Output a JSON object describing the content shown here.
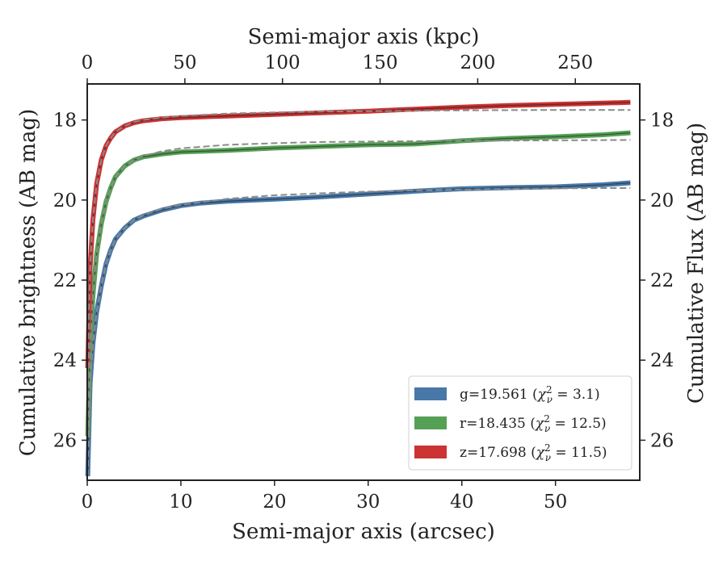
{
  "chart_data": {
    "type": "line",
    "xlabel": "Semi-major axis (arcsec)",
    "x2label": "Semi-major axis (kpc)",
    "ylabel": "Cumulative brightness (AB mag)",
    "y2label": "Cumulative Flux (AB mag)",
    "xlim": [
      0,
      59
    ],
    "x2lim": [
      0,
      283
    ],
    "ylim": [
      27,
      17.1
    ],
    "y_inverted": true,
    "xticks": [
      0,
      10,
      20,
      30,
      40,
      50
    ],
    "x2ticks": [
      0,
      50,
      100,
      150,
      200,
      250
    ],
    "yticks": [
      18,
      20,
      22,
      24,
      26
    ],
    "grid": false,
    "legend_position": "bottom-right",
    "series": [
      {
        "name": "g=19.561 (χ²ν = 3.1)",
        "label_main": "g=19.561 (",
        "label_chi": "3.1",
        "color": "#4878a8",
        "points": [
          [
            0.05,
            26.9
          ],
          [
            0.3,
            24.6
          ],
          [
            0.6,
            23.6
          ],
          [
            1,
            22.8
          ],
          [
            1.5,
            22.15
          ],
          [
            2,
            21.6
          ],
          [
            2.5,
            21.25
          ],
          [
            3,
            20.98
          ],
          [
            4,
            20.7
          ],
          [
            5,
            20.5
          ],
          [
            6,
            20.4
          ],
          [
            8,
            20.25
          ],
          [
            10,
            20.14
          ],
          [
            12,
            20.08
          ],
          [
            15,
            20.03
          ],
          [
            18,
            20.0
          ],
          [
            20,
            19.98
          ],
          [
            25,
            19.92
          ],
          [
            30,
            19.85
          ],
          [
            35,
            19.78
          ],
          [
            40,
            19.72
          ],
          [
            45,
            19.69
          ],
          [
            50,
            19.67
          ],
          [
            55,
            19.62
          ],
          [
            58,
            19.57
          ]
        ]
      },
      {
        "name": "r=18.435 (χ²ν = 12.5)",
        "label_main": "r=18.435 (",
        "label_chi": "12.5",
        "color": "#56a055",
        "points": [
          [
            0.05,
            25.9
          ],
          [
            0.3,
            23.6
          ],
          [
            0.6,
            22.4
          ],
          [
            1,
            21.35
          ],
          [
            1.5,
            20.6
          ],
          [
            2,
            20.05
          ],
          [
            2.5,
            19.7
          ],
          [
            3,
            19.42
          ],
          [
            4,
            19.15
          ],
          [
            5,
            19.0
          ],
          [
            6,
            18.92
          ],
          [
            8,
            18.85
          ],
          [
            10,
            18.8
          ],
          [
            15,
            18.76
          ],
          [
            20,
            18.7
          ],
          [
            25,
            18.66
          ],
          [
            30,
            18.62
          ],
          [
            35,
            18.6
          ],
          [
            40,
            18.52
          ],
          [
            45,
            18.46
          ],
          [
            50,
            18.42
          ],
          [
            55,
            18.37
          ],
          [
            58,
            18.32
          ]
        ]
      },
      {
        "name": "z=17.698 (χ²ν = 11.5)",
        "label_main": "z=17.698 (",
        "label_chi": "11.5",
        "color": "#cc3333",
        "points": [
          [
            0.05,
            24.2
          ],
          [
            0.3,
            21.7
          ],
          [
            0.6,
            20.5
          ],
          [
            1,
            19.6
          ],
          [
            1.5,
            19.0
          ],
          [
            2,
            18.65
          ],
          [
            2.5,
            18.45
          ],
          [
            3,
            18.3
          ],
          [
            4,
            18.15
          ],
          [
            5,
            18.07
          ],
          [
            6,
            18.02
          ],
          [
            8,
            17.97
          ],
          [
            10,
            17.94
          ],
          [
            15,
            17.9
          ],
          [
            20,
            17.86
          ],
          [
            25,
            17.82
          ],
          [
            30,
            17.78
          ],
          [
            35,
            17.73
          ],
          [
            40,
            17.68
          ],
          [
            45,
            17.64
          ],
          [
            50,
            17.61
          ],
          [
            55,
            17.58
          ],
          [
            58,
            17.56
          ]
        ]
      }
    ],
    "fits": [
      {
        "points": [
          [
            0.05,
            26.9
          ],
          [
            0.3,
            24.6
          ],
          [
            0.6,
            23.6
          ],
          [
            1,
            22.8
          ],
          [
            1.5,
            22.15
          ],
          [
            2,
            21.6
          ],
          [
            2.5,
            21.25
          ],
          [
            3,
            20.98
          ],
          [
            4,
            20.7
          ],
          [
            5,
            20.5
          ],
          [
            6,
            20.38
          ],
          [
            8,
            20.22
          ],
          [
            10,
            20.12
          ],
          [
            15,
            19.97
          ],
          [
            20,
            19.88
          ],
          [
            25,
            19.83
          ],
          [
            30,
            19.79
          ],
          [
            35,
            19.76
          ],
          [
            40,
            19.74
          ],
          [
            45,
            19.72
          ],
          [
            50,
            19.71
          ],
          [
            58,
            19.7
          ]
        ]
      },
      {
        "points": [
          [
            0.05,
            25.9
          ],
          [
            0.3,
            23.6
          ],
          [
            0.6,
            22.4
          ],
          [
            1,
            21.35
          ],
          [
            1.5,
            20.6
          ],
          [
            2,
            20.05
          ],
          [
            2.5,
            19.7
          ],
          [
            3,
            19.42
          ],
          [
            4,
            19.15
          ],
          [
            5,
            19.0
          ],
          [
            6,
            18.9
          ],
          [
            8,
            18.78
          ],
          [
            10,
            18.71
          ],
          [
            15,
            18.62
          ],
          [
            20,
            18.58
          ],
          [
            25,
            18.55
          ],
          [
            30,
            18.54
          ],
          [
            40,
            18.52
          ],
          [
            50,
            18.51
          ],
          [
            58,
            18.5
          ]
        ]
      },
      {
        "points": [
          [
            0.05,
            24.2
          ],
          [
            0.3,
            21.7
          ],
          [
            0.6,
            20.5
          ],
          [
            1,
            19.6
          ],
          [
            1.5,
            19.0
          ],
          [
            2,
            18.65
          ],
          [
            2.5,
            18.45
          ],
          [
            3,
            18.3
          ],
          [
            4,
            18.15
          ],
          [
            5,
            18.05
          ],
          [
            6,
            18.0
          ],
          [
            8,
            17.94
          ],
          [
            10,
            17.9
          ],
          [
            15,
            17.84
          ],
          [
            20,
            17.81
          ],
          [
            25,
            17.79
          ],
          [
            30,
            17.78
          ],
          [
            40,
            17.76
          ],
          [
            50,
            17.75
          ],
          [
            58,
            17.75
          ]
        ]
      }
    ]
  }
}
